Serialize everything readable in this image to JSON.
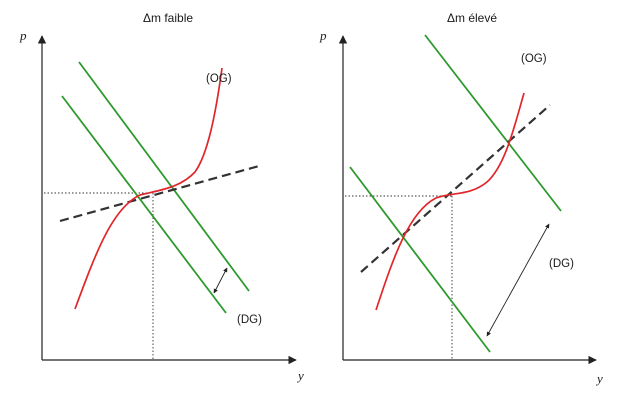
{
  "panels": [
    {
      "title": "Δm faible",
      "y_axis_label": "p",
      "x_axis_label": "y",
      "og_label": "(OG)",
      "dg_label": "(DG)"
    },
    {
      "title": "Δm élevé",
      "y_axis_label": "p",
      "x_axis_label": "y",
      "og_label": "(OG)",
      "dg_label": "(DG)"
    }
  ],
  "colors": {
    "demand_lines": "#2e9a2e",
    "supply_curve": "#e0262a",
    "axes": "#222222",
    "dashed_line": "#333333"
  }
}
